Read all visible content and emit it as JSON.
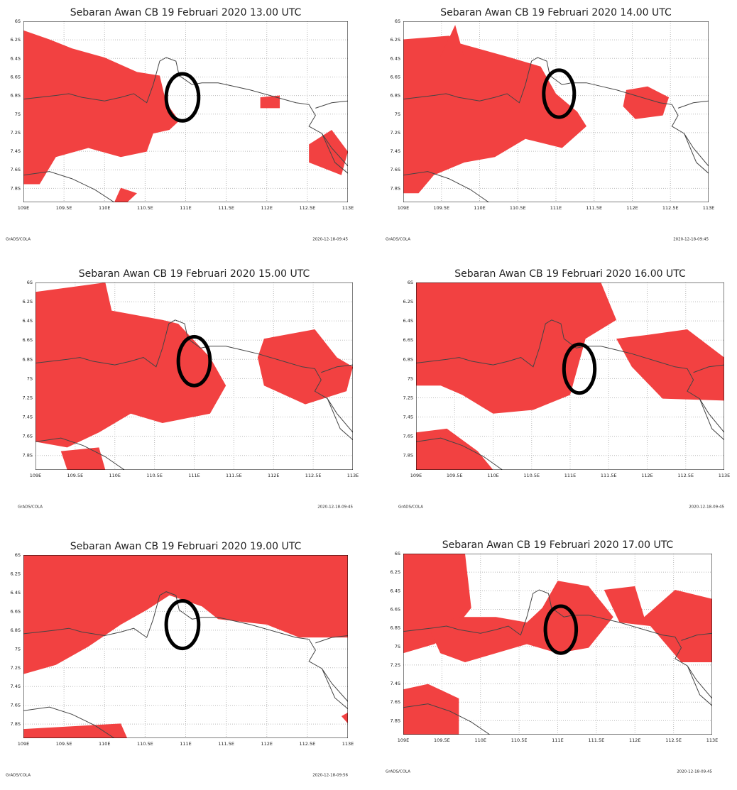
{
  "panels": [
    {
      "title": "Sebaran Awan CB 19 Februari 2020 13.00 UTC",
      "footer_left": "GrADS/COLA",
      "footer_right": "2020-12-18-09:45"
    },
    {
      "title": "Sebaran Awan CB 19 Februari 2020 14.00 UTC",
      "footer_left": "GrADS/COLA",
      "footer_right": "2020-12-18-09:45"
    },
    {
      "title": "Sebaran Awan CB 19 Februari 2020 15.00 UTC",
      "footer_left": "GrADS/COLA",
      "footer_right": "2020-12-18-09:45"
    },
    {
      "title": "Sebaran Awan CB 19 Februari 2020 16.00 UTC",
      "footer_left": "GrADS/COLA",
      "footer_right": "2020-12-18-09:45"
    },
    {
      "title": "Sebaran Awan CB 19 Februari 2020 19.00 UTC",
      "footer_left": "GrADS/COLA",
      "footer_right": "2020-12-18-09:56"
    },
    {
      "title": "Sebaran Awan CB 19 Februari 2020 17.00 UTC",
      "footer_left": "GrADS/COLA",
      "footer_right": "2020-12-18-09:45"
    }
  ],
  "y_labels": [
    "6S",
    "6.2S",
    "6.4S",
    "6.6S",
    "6.8S",
    "7S",
    "7.2S",
    "7.4S",
    "7.6S",
    "7.8S"
  ],
  "x_labels": [
    "109E",
    "109.5E",
    "110E",
    "110.5E",
    "111E",
    "111.5E",
    "112E",
    "112.5E",
    "113E"
  ]
}
